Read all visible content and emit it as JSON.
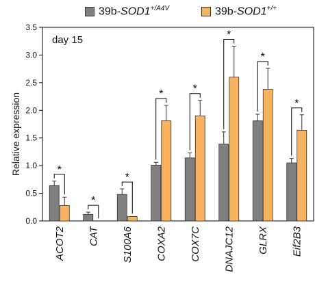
{
  "legend": {
    "series1": {
      "prefix": "39b-",
      "gene": "SOD1",
      "sup": "+/A4V"
    },
    "series2": {
      "prefix": "39b-",
      "gene": "SOD1",
      "sup": "+/+"
    }
  },
  "chart_data": {
    "type": "bar",
    "title": "",
    "annotation": "day 15",
    "xlabel": "",
    "ylabel": "Relative expression",
    "ylim": [
      0,
      3.5
    ],
    "yticks": [
      "0.0",
      "0.5",
      "1.0",
      "1.5",
      "2.0",
      "2.5",
      "3.0",
      "3.5"
    ],
    "categories": [
      "ACOT2",
      "CAT",
      "S100A6",
      "COXA2",
      "COX7C",
      "DNAJC12",
      "GLRX",
      "Eif2B3"
    ],
    "series": [
      {
        "name": "39b-SOD1+/A4V",
        "color": "#808080",
        "values": [
          0.64,
          0.12,
          0.48,
          1.01,
          1.14,
          1.39,
          1.81,
          1.05
        ],
        "errors": [
          0.08,
          0.04,
          0.1,
          0.05,
          0.09,
          0.22,
          0.12,
          0.08
        ]
      },
      {
        "name": "39b-SOD1+/+",
        "color": "#F9B25F",
        "values": [
          0.28,
          0.0,
          0.08,
          1.81,
          1.9,
          2.6,
          2.38,
          1.64
        ],
        "errors": [
          0.15,
          0.0,
          0.0,
          0.28,
          0.28,
          0.56,
          0.38,
          0.28
        ]
      }
    ],
    "significance": [
      "*",
      "*",
      "*",
      "*",
      "*",
      "*",
      "*",
      "*"
    ],
    "grid": false,
    "legend_position": "top"
  }
}
